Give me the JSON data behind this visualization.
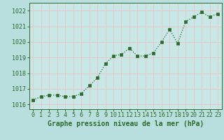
{
  "x": [
    0,
    1,
    2,
    3,
    4,
    5,
    6,
    7,
    8,
    9,
    10,
    11,
    12,
    13,
    14,
    15,
    16,
    17,
    18,
    19,
    20,
    21,
    22,
    23
  ],
  "y": [
    1016.3,
    1016.5,
    1016.6,
    1016.6,
    1016.5,
    1016.5,
    1016.7,
    1017.2,
    1017.7,
    1018.6,
    1019.1,
    1019.2,
    1019.6,
    1019.1,
    1019.1,
    1019.3,
    1020.0,
    1020.8,
    1019.9,
    1021.3,
    1021.6,
    1021.9,
    1021.6,
    1021.8
  ],
  "line_color": "#2d6a2d",
  "marker_color": "#2d6a2d",
  "bg_color": "#b8dede",
  "grid_color": "#e8c8c8",
  "plot_bg": "#c8e8e8",
  "xlabel": "Graphe pression niveau de la mer (hPa)",
  "xlabel_color": "#2d6a2d",
  "tick_color": "#2d6a2d",
  "ylabel_ticks": [
    1016,
    1017,
    1018,
    1019,
    1020,
    1021,
    1022
  ],
  "xlim": [
    -0.5,
    23.5
  ],
  "ylim": [
    1015.7,
    1022.5
  ],
  "title_fontsize": 7,
  "tick_fontsize": 6
}
